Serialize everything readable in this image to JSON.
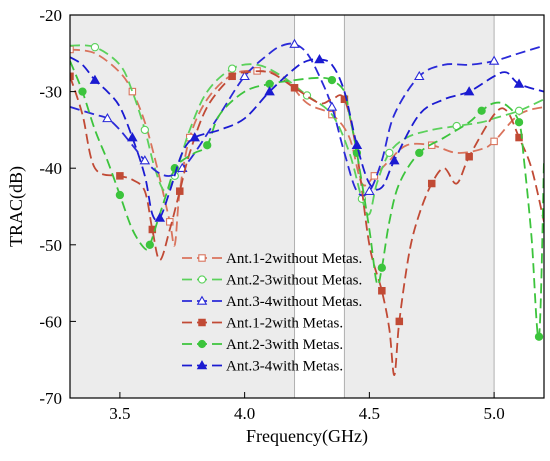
{
  "chart_data": {
    "type": "line",
    "xlabel": "Frequency(GHz)",
    "ylabel": "TRAC(dB)",
    "xlim": [
      3.3,
      5.2
    ],
    "ylim": [
      -70,
      -20
    ],
    "x_ticks": [
      3.5,
      4.0,
      4.5,
      5.0
    ],
    "x_tick_labels": [
      "3.5",
      "4.0",
      "4.5",
      "5.0"
    ],
    "y_ticks": [
      -20,
      -30,
      -40,
      -50,
      -60,
      -70
    ],
    "y_tick_labels": [
      "-20",
      "-30",
      "-40",
      "-50",
      "-60",
      "-70"
    ],
    "shaded_bands": [
      [
        3.3,
        4.2
      ],
      [
        4.4,
        5.0
      ]
    ],
    "legend_position": "lower-left",
    "series": [
      {
        "name": "Ant.1-2without Metas.",
        "color": "#d9735c",
        "dash": true,
        "marker": "square",
        "filled": false,
        "x": [
          3.3,
          3.4,
          3.5,
          3.55,
          3.6,
          3.65,
          3.7,
          3.72,
          3.74,
          3.78,
          3.85,
          3.95,
          4.05,
          4.15,
          4.25,
          4.35,
          4.42,
          4.47,
          4.52,
          4.58,
          4.65,
          4.75,
          4.85,
          4.95,
          5.0,
          5.1,
          5.2
        ],
        "y": [
          -24.5,
          -25,
          -27.5,
          -30,
          -34,
          -40,
          -47,
          -50,
          -43,
          -36,
          -31,
          -27.8,
          -27.3,
          -28,
          -31.5,
          -33,
          -36,
          -42,
          -41,
          -39,
          -37,
          -37,
          -38,
          -37.5,
          -36.5,
          -33,
          -32
        ]
      },
      {
        "name": "Ant.2-3without Metas.",
        "color": "#5bd15b",
        "dash": true,
        "marker": "circle",
        "filled": false,
        "x": [
          3.3,
          3.4,
          3.5,
          3.55,
          3.6,
          3.64,
          3.68,
          3.72,
          3.78,
          3.85,
          3.95,
          4.05,
          4.15,
          4.25,
          4.35,
          4.42,
          4.47,
          4.5,
          4.53,
          4.58,
          4.65,
          4.75,
          4.85,
          4.95,
          5.0,
          5.1,
          5.2
        ],
        "y": [
          -24,
          -24.2,
          -26.5,
          -30,
          -35,
          -40,
          -43,
          -41,
          -35,
          -30,
          -27,
          -26.5,
          -28,
          -30.5,
          -33,
          -38,
          -44,
          -46,
          -42,
          -38,
          -36,
          -35,
          -34.5,
          -34,
          -33.5,
          -32.5,
          -31
        ]
      },
      {
        "name": "Ant.3-4without Metas.",
        "color": "#2a2ad8",
        "dash": true,
        "marker": "triangle",
        "filled": false,
        "x": [
          3.3,
          3.4,
          3.45,
          3.5,
          3.55,
          3.6,
          3.65,
          3.7,
          3.75,
          3.8,
          3.9,
          4.0,
          4.1,
          4.15,
          4.2,
          4.25,
          4.3,
          4.35,
          4.4,
          4.45,
          4.5,
          4.55,
          4.6,
          4.7,
          4.8,
          4.9,
          5.0,
          5.1,
          5.2
        ],
        "y": [
          -32,
          -33,
          -33.5,
          -35,
          -37,
          -39,
          -40.5,
          -41,
          -40,
          -38,
          -33,
          -28,
          -25,
          -24,
          -23.8,
          -25,
          -28,
          -32,
          -38,
          -43,
          -43,
          -39,
          -33,
          -28,
          -26.5,
          -26.5,
          -26,
          -25,
          -24
        ]
      },
      {
        "name": "Ant.1-2with Metas.",
        "color": "#c14a35",
        "dash": true,
        "marker": "square",
        "filled": true,
        "x": [
          3.3,
          3.35,
          3.4,
          3.5,
          3.55,
          3.6,
          3.63,
          3.66,
          3.7,
          3.74,
          3.78,
          3.85,
          3.95,
          4.0,
          4.1,
          4.2,
          4.3,
          4.35,
          4.4,
          4.45,
          4.5,
          4.55,
          4.58,
          4.6,
          4.62,
          4.66,
          4.7,
          4.75,
          4.8,
          4.85,
          4.9,
          5.0,
          5.05,
          5.1,
          5.15,
          5.2
        ],
        "y": [
          -28,
          -33,
          -40,
          -41,
          -41.5,
          -43,
          -48,
          -52,
          -48,
          -43,
          -38,
          -32,
          -28,
          -27.5,
          -27.5,
          -29.5,
          -31.5,
          -31,
          -31,
          -38,
          -50,
          -56,
          -61,
          -67,
          -60,
          -51,
          -46,
          -42,
          -40,
          -42,
          -38.5,
          -33,
          -32.5,
          -36,
          -40,
          -47
        ]
      },
      {
        "name": "Ant.2-3with Metas.",
        "color": "#3cc43c",
        "dash": true,
        "marker": "circle",
        "filled": true,
        "x": [
          3.3,
          3.35,
          3.4,
          3.45,
          3.5,
          3.55,
          3.6,
          3.62,
          3.65,
          3.68,
          3.72,
          3.75,
          3.8,
          3.85,
          3.9,
          4.0,
          4.1,
          4.2,
          4.3,
          4.35,
          4.4,
          4.42,
          4.45,
          4.5,
          4.53,
          4.55,
          4.58,
          4.62,
          4.7,
          4.8,
          4.9,
          4.95,
          5.0,
          5.05,
          5.1,
          5.12,
          5.15,
          5.18,
          5.2
        ],
        "y": [
          -26,
          -30,
          -35,
          -39,
          -43.5,
          -48,
          -50.5,
          -50,
          -47,
          -44,
          -40,
          -39,
          -38,
          -37,
          -33,
          -30,
          -29,
          -28.5,
          -28.2,
          -28.5,
          -30,
          -33,
          -38,
          -48,
          -55,
          -53,
          -47,
          -42,
          -38,
          -36,
          -34,
          -32.5,
          -31.5,
          -31.8,
          -34,
          -39,
          -49,
          -62,
          -39
        ]
      },
      {
        "name": "Ant.3-4with Metas.",
        "color": "#1b1bd1",
        "dash": true,
        "marker": "triangle",
        "filled": true,
        "x": [
          3.3,
          3.35,
          3.4,
          3.45,
          3.5,
          3.55,
          3.6,
          3.63,
          3.66,
          3.7,
          3.75,
          3.8,
          3.9,
          4.0,
          4.1,
          4.2,
          4.25,
          4.3,
          4.35,
          4.4,
          4.45,
          4.5,
          4.55,
          4.6,
          4.7,
          4.8,
          4.9,
          5.0,
          5.05,
          5.1,
          5.2
        ],
        "y": [
          -25.5,
          -26.5,
          -28.5,
          -30,
          -32,
          -36,
          -41,
          -46,
          -46.5,
          -43,
          -38,
          -36,
          -35,
          -33.5,
          -30,
          -27,
          -26,
          -25.8,
          -26.5,
          -30,
          -37,
          -42,
          -42.5,
          -39,
          -33,
          -31,
          -30,
          -28,
          -27.5,
          -29,
          -30
        ]
      }
    ]
  }
}
